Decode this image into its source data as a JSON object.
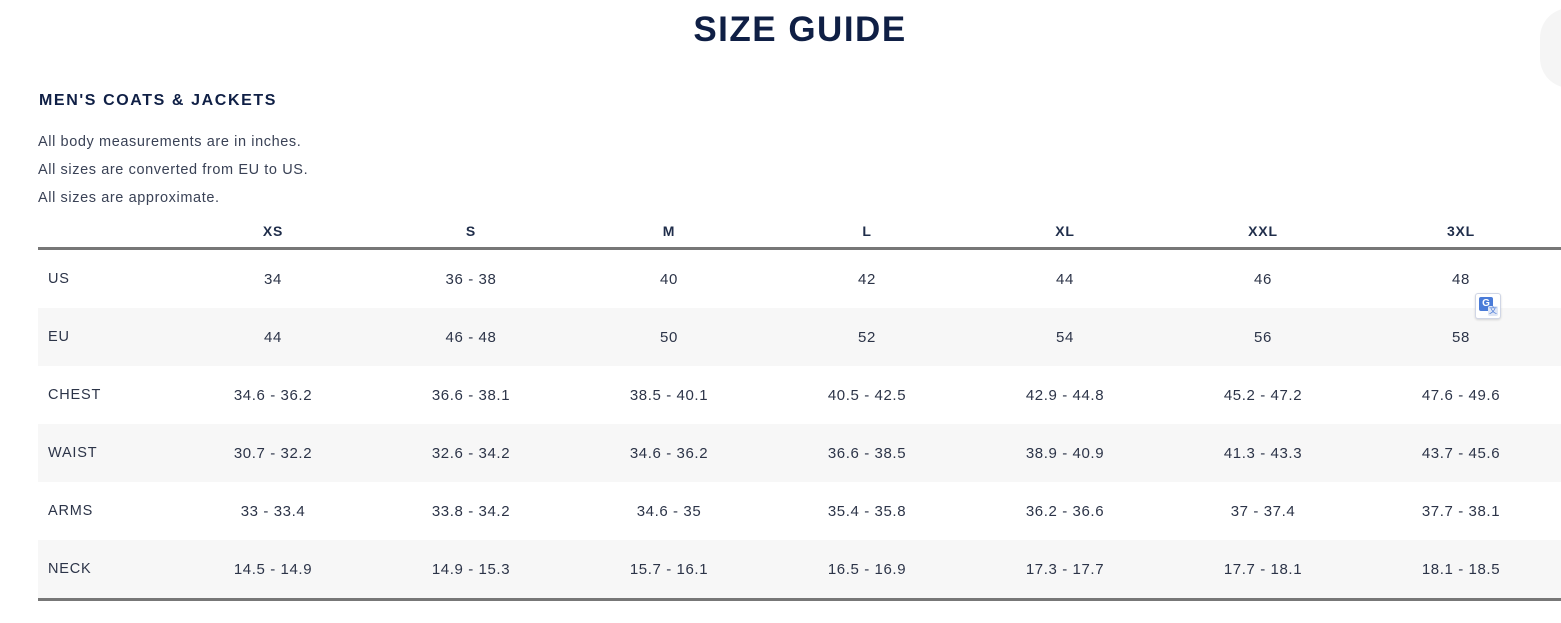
{
  "page": {
    "title": "SIZE GUIDE"
  },
  "section": {
    "title": "MEN'S COATS & JACKETS",
    "notes": [
      "All body measurements are in inches.",
      "All sizes are converted from EU to US.",
      "All sizes are approximate."
    ]
  },
  "table": {
    "sizes": [
      "XS",
      "S",
      "M",
      "L",
      "XL",
      "XXL",
      "3XL"
    ],
    "rows": [
      {
        "label": "US",
        "values": [
          "34",
          "36 - 38",
          "40",
          "42",
          "44",
          "46",
          "48"
        ]
      },
      {
        "label": "EU",
        "values": [
          "44",
          "46 - 48",
          "50",
          "52",
          "54",
          "56",
          "58"
        ]
      },
      {
        "label": "CHEST",
        "values": [
          "34.6 - 36.2",
          "36.6 - 38.1",
          "38.5 - 40.1",
          "40.5 - 42.5",
          "42.9 - 44.8",
          "45.2 - 47.2",
          "47.6 - 49.6"
        ]
      },
      {
        "label": "WAIST",
        "values": [
          "30.7 - 32.2",
          "32.6 - 34.2",
          "34.6 - 36.2",
          "36.6 - 38.5",
          "38.9 - 40.9",
          "41.3 - 43.3",
          "43.7 - 45.6"
        ]
      },
      {
        "label": "ARMS",
        "values": [
          "33 - 33.4",
          "33.8 - 34.2",
          "34.6 - 35",
          "35.4 - 35.8",
          "36.2 - 36.6",
          "37 - 37.4",
          "37.7 - 38.1"
        ]
      },
      {
        "label": "NECK",
        "values": [
          "14.5 - 14.9",
          "14.9 - 15.3",
          "15.7 - 16.1",
          "16.5 - 16.9",
          "17.3 - 17.7",
          "17.7 - 18.1",
          "18.1 - 18.5"
        ]
      }
    ]
  },
  "icons": {
    "translate": "google-translate-icon"
  },
  "colors": {
    "heading": "#0f1f45",
    "text": "#2c3448",
    "rule": "#777777",
    "row_alt": "#f7f7f7"
  }
}
